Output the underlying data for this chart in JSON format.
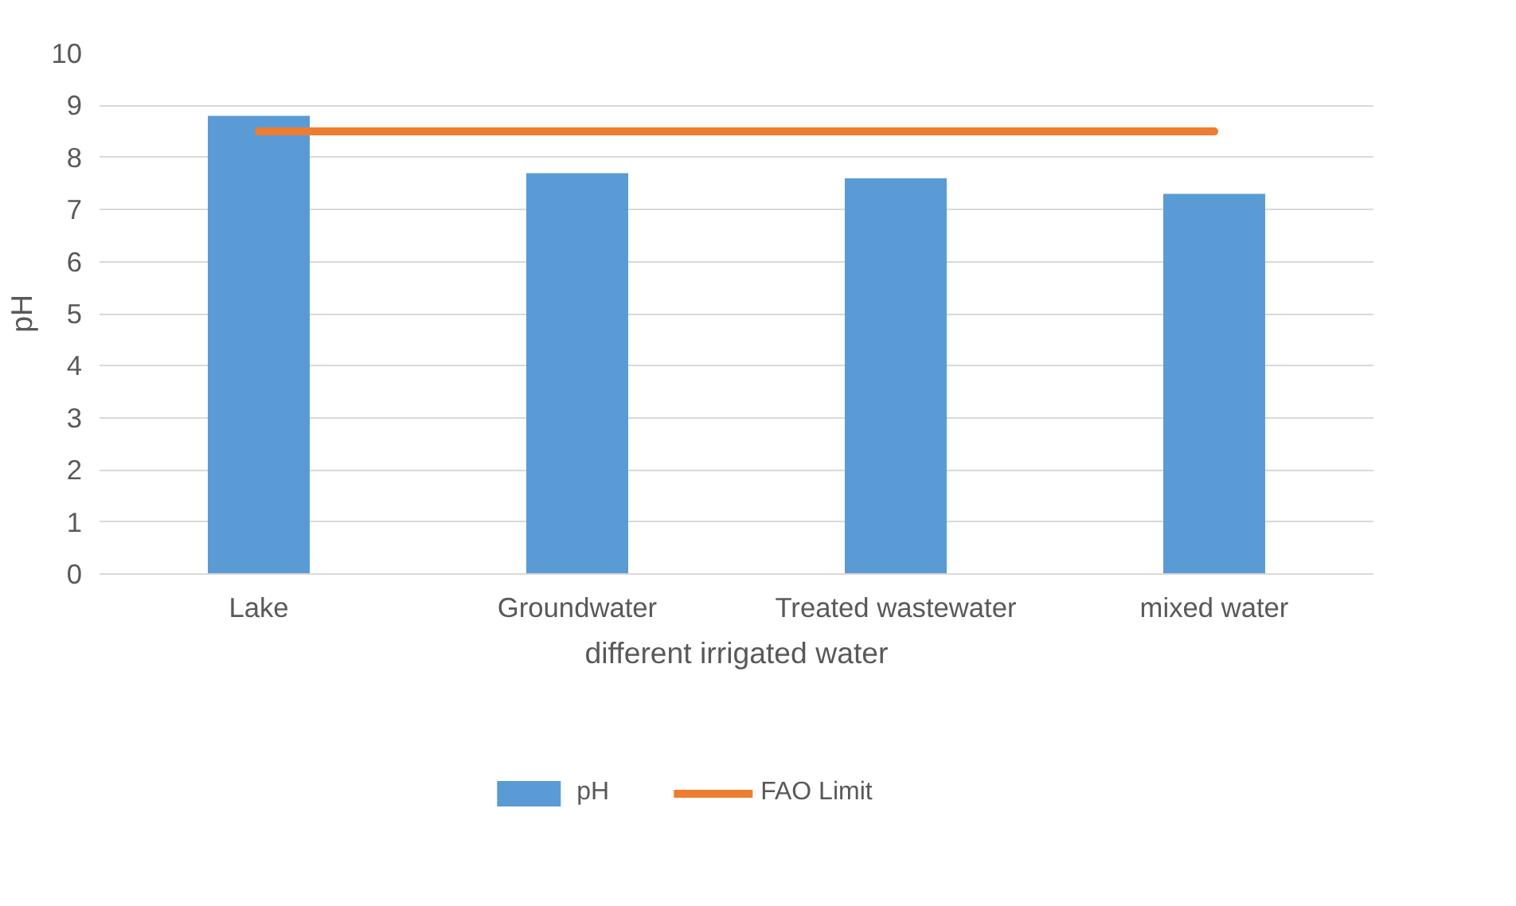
{
  "chart_data": {
    "type": "bar",
    "xlabel": "different irrigated water",
    "ylabel": "pH",
    "categories": [
      "Lake",
      "Groundwater",
      "Treated wastewater",
      "mixed water"
    ],
    "series": [
      {
        "name": "pH",
        "color": "#5b9bd5",
        "values": [
          8.8,
          7.7,
          7.6,
          7.3
        ]
      },
      {
        "name": "FAO Limit",
        "type": "line",
        "color": "#ed7d31",
        "values": [
          8.5,
          8.5,
          8.5,
          8.5
        ]
      }
    ],
    "ylim": [
      0,
      10
    ],
    "yticks": [
      0,
      1,
      2,
      3,
      4,
      5,
      6,
      7,
      8,
      9,
      10
    ],
    "grid": "y",
    "legend": "bottom"
  }
}
